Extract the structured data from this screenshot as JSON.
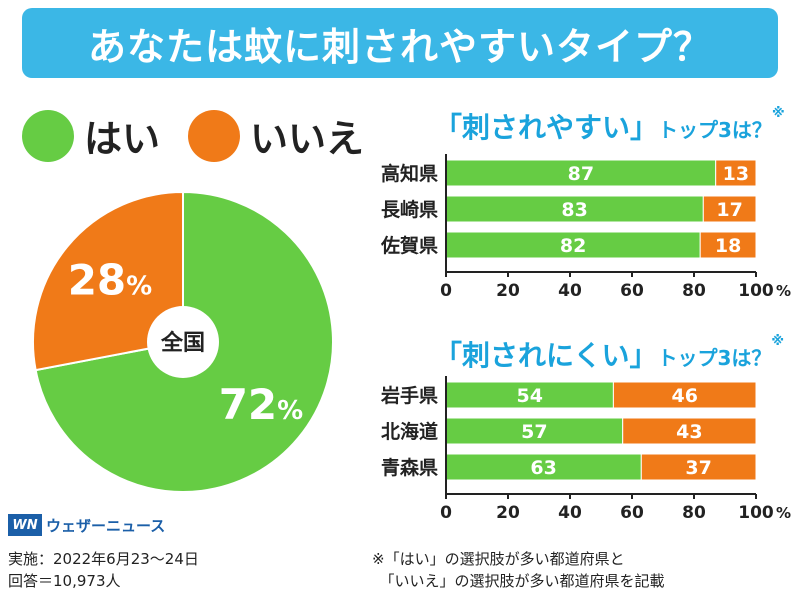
{
  "header": {
    "title": "あなたは蚊に刺されやすいタイプ？"
  },
  "legend": {
    "yes": {
      "label": "はい",
      "color": "#66cc44"
    },
    "no": {
      "label": "いいえ",
      "color": "#f07a18"
    }
  },
  "colors": {
    "yes": "#66cc44",
    "no": "#f07a18",
    "accent": "#1aa3dc",
    "banner": "#3bb7e6"
  },
  "chart_data": [
    {
      "type": "pie",
      "center_label": "全国",
      "slices": [
        {
          "name": "はい",
          "value": 72,
          "label": "72%"
        },
        {
          "name": "いいえ",
          "value": 28,
          "label": "28%"
        }
      ]
    },
    {
      "type": "bar",
      "orientation": "horizontal",
      "stacked": true,
      "title": "「刺されやすい」トップ3は？※",
      "title_main": "「刺されやすい」",
      "title_sub": "トップ3は？",
      "title_note": "※",
      "categories": [
        "高知県",
        "長崎県",
        "佐賀県"
      ],
      "series": [
        {
          "name": "はい",
          "values": [
            87,
            83,
            82
          ]
        },
        {
          "name": "いいえ",
          "values": [
            13,
            17,
            18
          ]
        }
      ],
      "xlim": [
        0,
        100
      ],
      "xticks": [
        0,
        20,
        40,
        60,
        80,
        100
      ],
      "unit": "%"
    },
    {
      "type": "bar",
      "orientation": "horizontal",
      "stacked": true,
      "title": "「刺されにくい」トップ3は？※",
      "title_main": "「刺されにくい」",
      "title_sub": "トップ3は？",
      "title_note": "※",
      "categories": [
        "岩手県",
        "北海道",
        "青森県"
      ],
      "series": [
        {
          "name": "はい",
          "values": [
            54,
            57,
            63
          ]
        },
        {
          "name": "いいえ",
          "values": [
            46,
            43,
            37
          ]
        }
      ],
      "xlim": [
        0,
        100
      ],
      "xticks": [
        0,
        20,
        40,
        60,
        80,
        100
      ],
      "unit": "%"
    }
  ],
  "source": {
    "logo_mark": "WN",
    "logo_text": "ウェザーニュース",
    "date_line": "実施：2022年6月23〜24日",
    "respondents_line": "回答＝10,973人"
  },
  "footnote": {
    "line1": "※「はい」の選択肢が多い都道府県と",
    "line2": "　「いいえ」の選択肢が多い都道府県を記載"
  }
}
